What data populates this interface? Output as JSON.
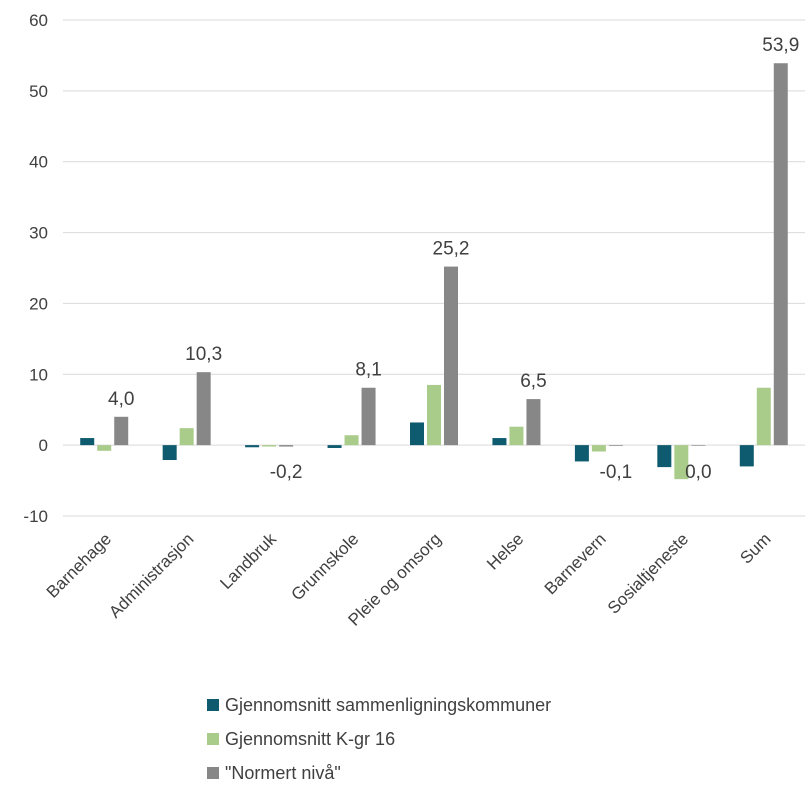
{
  "chart_data": {
    "type": "bar",
    "categories": [
      "Barnehage",
      "Administrasjon",
      "Landbruk",
      "Grunnskole",
      "Pleie og omsorg",
      "Helse",
      "Barnevern",
      "Sosialtjeneste",
      "Sum"
    ],
    "series": [
      {
        "name": "Gjennomsnitt sammenligningskommuner",
        "color": "#0e5a6e",
        "values": [
          1.0,
          -2.1,
          -0.3,
          -0.4,
          3.2,
          1.0,
          -2.3,
          -3.1,
          -3.0
        ]
      },
      {
        "name": "Gjennomsnitt K-gr 16",
        "color": "#a9cc8a",
        "values": [
          -0.8,
          2.4,
          -0.2,
          1.4,
          8.5,
          2.6,
          -0.9,
          -4.8,
          8.1
        ]
      },
      {
        "name": "\"Normert nivå\"",
        "color": "#878787",
        "values": [
          4.0,
          10.3,
          -0.2,
          8.1,
          25.2,
          6.5,
          -0.1,
          0.0,
          53.9
        ]
      }
    ],
    "data_labels": [
      "4,0",
      "10,3",
      "-0,2",
      "8,1",
      "25,2",
      "6,5",
      "-0,1",
      "0,0",
      "53,9"
    ],
    "y_ticks": [
      "60",
      "50",
      "40",
      "30",
      "20",
      "10",
      "0",
      "-10"
    ],
    "ylim": [
      -10,
      60
    ],
    "grid": true,
    "legend_position": "bottom"
  }
}
